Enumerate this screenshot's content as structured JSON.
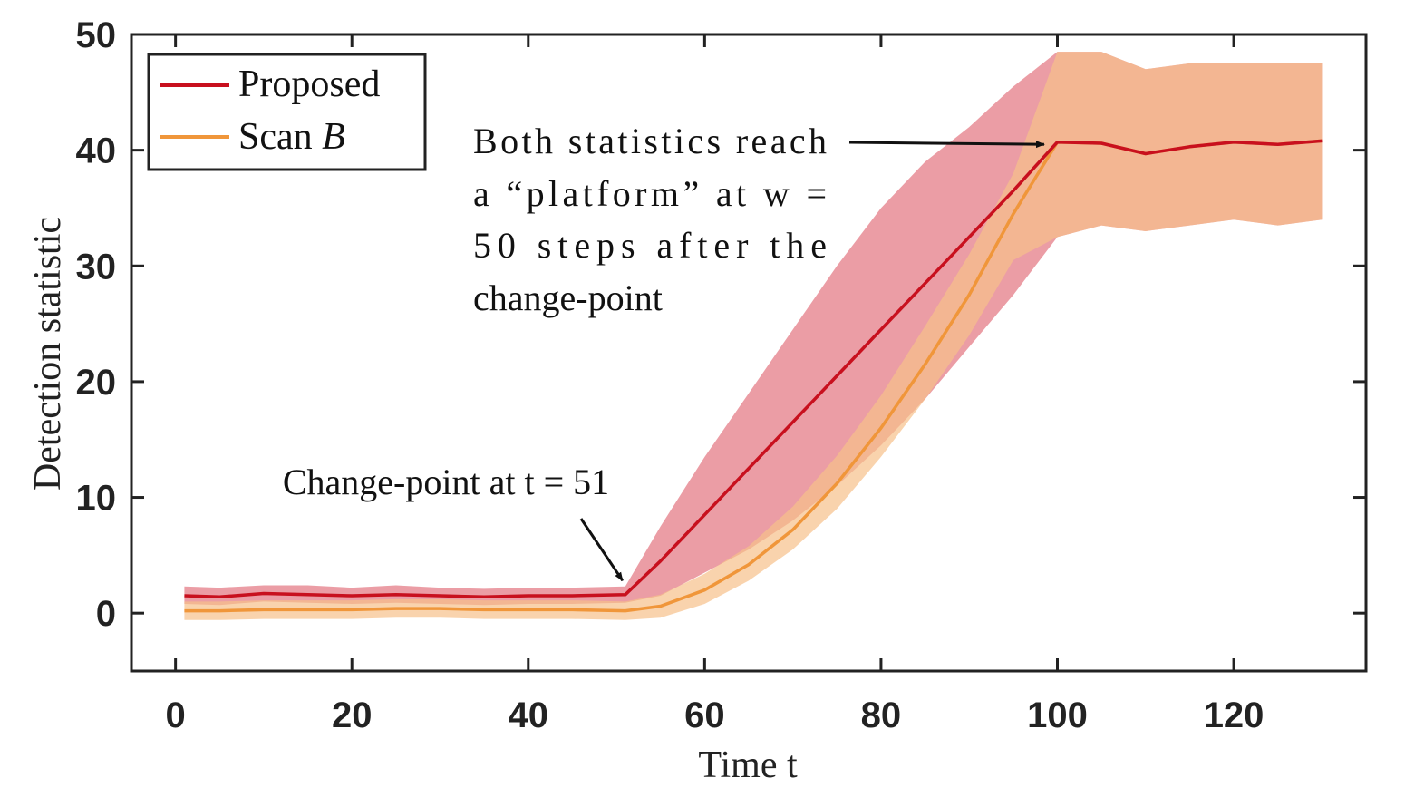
{
  "chart_data": {
    "type": "line",
    "title": "",
    "xlabel": "Time t",
    "ylabel": "Detection statistic",
    "xlim": [
      -5,
      135
    ],
    "ylim": [
      -5,
      50
    ],
    "xticks": [
      0,
      20,
      40,
      60,
      80,
      100,
      120
    ],
    "yticks": [
      0,
      10,
      20,
      30,
      40,
      50
    ],
    "grid": false,
    "legend_position": "top-left",
    "colors": {
      "proposed": "#c8101e",
      "proposed_band": "#e47c87",
      "scan": "#f0963a",
      "scan_band": "#f7c08a",
      "overlap": "#ee946c"
    },
    "series": [
      {
        "name": "Proposed",
        "x": [
          1,
          5,
          10,
          15,
          20,
          25,
          30,
          35,
          40,
          45,
          51,
          55,
          60,
          65,
          70,
          75,
          80,
          85,
          90,
          95,
          100,
          105,
          110,
          115,
          120,
          125,
          130
        ],
        "mean": [
          1.5,
          1.4,
          1.7,
          1.6,
          1.5,
          1.6,
          1.5,
          1.4,
          1.5,
          1.5,
          1.6,
          4.5,
          8.5,
          12.5,
          16.5,
          20.5,
          24.5,
          28.5,
          32.5,
          36.5,
          40.7,
          40.6,
          39.7,
          40.3,
          40.7,
          40.5,
          40.8
        ],
        "lower": [
          0.8,
          0.7,
          1.0,
          0.9,
          0.8,
          0.9,
          0.8,
          0.7,
          0.8,
          0.8,
          0.9,
          1.5,
          3.5,
          5.5,
          8.0,
          11.0,
          14.5,
          18.5,
          23.0,
          27.5,
          32.5,
          33.5,
          33.0,
          33.5,
          34.0,
          33.5,
          34.0
        ],
        "upper": [
          2.3,
          2.2,
          2.4,
          2.4,
          2.2,
          2.4,
          2.2,
          2.1,
          2.2,
          2.2,
          2.3,
          7.5,
          13.5,
          19.0,
          24.5,
          30.0,
          35.0,
          39.0,
          42.0,
          45.5,
          48.5,
          48.5,
          47.0,
          47.5,
          47.5,
          47.5,
          47.5
        ]
      },
      {
        "name": "Scan B",
        "x": [
          1,
          5,
          10,
          15,
          20,
          25,
          30,
          35,
          40,
          45,
          51,
          55,
          60,
          65,
          70,
          75,
          80,
          85,
          90,
          95,
          100,
          105,
          110,
          115,
          120,
          125,
          130
        ],
        "mean": [
          0.2,
          0.2,
          0.3,
          0.3,
          0.3,
          0.4,
          0.4,
          0.3,
          0.3,
          0.3,
          0.2,
          0.6,
          2.0,
          4.2,
          7.2,
          11.2,
          16.0,
          21.5,
          27.5,
          34.5,
          40.7,
          40.6,
          39.7,
          40.3,
          40.7,
          40.5,
          40.8
        ],
        "lower": [
          -0.6,
          -0.6,
          -0.5,
          -0.5,
          -0.5,
          -0.4,
          -0.4,
          -0.5,
          -0.5,
          -0.5,
          -0.6,
          -0.4,
          0.8,
          2.8,
          5.5,
          9.0,
          13.5,
          18.5,
          24.0,
          30.5,
          32.5,
          33.5,
          33.0,
          33.5,
          34.0,
          33.5,
          34.0
        ],
        "upper": [
          1.0,
          1.0,
          1.1,
          1.1,
          1.1,
          1.2,
          1.2,
          1.1,
          1.1,
          1.1,
          1.0,
          1.6,
          3.4,
          5.8,
          9.2,
          13.6,
          18.8,
          24.8,
          31.0,
          38.0,
          48.5,
          48.5,
          47.0,
          47.5,
          47.5,
          47.5,
          47.5
        ]
      }
    ],
    "legend": [
      {
        "name": "Proposed",
        "label": "Proposed",
        "label_suffix": ""
      },
      {
        "name": "Scan B",
        "label": "Scan ",
        "label_suffix": "B"
      }
    ],
    "annotations": [
      {
        "id": "change-point",
        "lines": [
          "Change-point at t = 51"
        ],
        "arrow_to": {
          "x": 51,
          "y": 2.5
        }
      },
      {
        "id": "platform",
        "lines": [
          "Both statistics reach",
          "a “platform” at w =",
          "50 steps after the",
          "change-point"
        ],
        "arrow_to": {
          "x": 98.5,
          "y": 40.5
        }
      }
    ]
  }
}
